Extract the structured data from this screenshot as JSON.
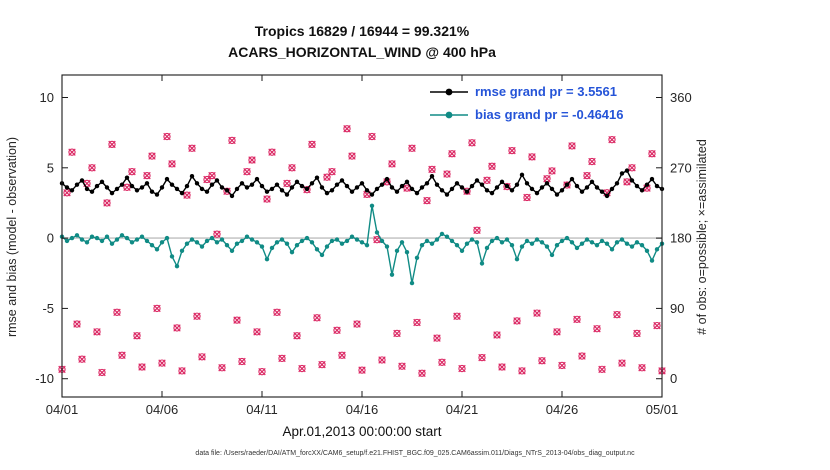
{
  "title_line1": "Tropics 16829 / 16944 = 99.321%",
  "title_line2": "ACARS_HORIZONTAL_WIND @ 400 hPa",
  "xlabel": "Apr.01,2013 00:00:00 start",
  "ylabel_left": "rmse and bias (model - observation)",
  "ylabel_right": "# of obs: o=possible; ×=assimilated",
  "footer": "data file: /Users/raeder/DAI/ATM_forcXX/CAM6_setup/f.e21.FHIST_BGC.f09_025.CAM6assim.011/Diags_NTrS_2013-04/obs_diag_output.nc",
  "legend": [
    {
      "label": "rmse grand pr = 3.5561",
      "series": "rmse"
    },
    {
      "label": "bias grand pr = -0.46416",
      "series": "bias"
    }
  ],
  "colors": {
    "rmse": "#000000",
    "bias": "#108b85",
    "obs": "#db2763",
    "legend_text": "#2554d8",
    "zero_line": "#c8c8c8",
    "axis": "#1a1a1a",
    "right_tick_text": "#db2763"
  },
  "chart_data": {
    "type": "line",
    "title": "Tropics 16829 / 16944 = 99.321% | ACARS_HORIZONTAL_WIND @ 400 hPa",
    "x_unit": "days since Apr.01,2013 00:00:00",
    "x_start": 0,
    "x_step_days": 0.25,
    "x_range_days": [
      0,
      30
    ],
    "x_tick_days": [
      0,
      5,
      10,
      15,
      20,
      25,
      30
    ],
    "x_tick_labels": [
      "04/01",
      "04/06",
      "04/11",
      "04/16",
      "04/21",
      "04/26",
      "05/01"
    ],
    "left_axis_ticks": [
      -10,
      -5,
      0,
      5,
      10
    ],
    "left_axis_range": [
      -11.3,
      11.6
    ],
    "right_axis_ticks": [
      0,
      90,
      180,
      270,
      360
    ],
    "right_axis_range": [
      0,
      360
    ],
    "grid": "zero-line-only",
    "legend_position": "upper-right-inside",
    "series": [
      {
        "name": "rmse",
        "axis": "left",
        "marker": "filled-circle",
        "grand_value": 3.5561,
        "values": [
          3.9,
          3.6,
          3.4,
          3.8,
          4.1,
          3.5,
          3.3,
          3.7,
          4.0,
          3.6,
          3.2,
          3.5,
          3.8,
          4.3,
          3.7,
          3.4,
          3.6,
          3.9,
          3.3,
          3.1,
          3.6,
          4.2,
          3.8,
          3.5,
          3.2,
          3.7,
          4.4,
          3.9,
          3.5,
          3.3,
          3.8,
          4.1,
          3.6,
          3.4,
          3.0,
          3.5,
          3.9,
          3.6,
          3.8,
          4.2,
          3.7,
          3.3,
          3.5,
          3.8,
          3.4,
          3.1,
          3.6,
          4.0,
          3.7,
          3.5,
          3.9,
          4.3,
          3.6,
          3.2,
          3.4,
          3.8,
          4.1,
          3.7,
          3.3,
          3.6,
          3.9,
          3.4,
          3.1,
          3.5,
          3.8,
          4.2,
          3.6,
          3.3,
          3.7,
          4.0,
          3.5,
          3.2,
          3.6,
          3.9,
          4.4,
          3.8,
          3.4,
          3.1,
          3.5,
          3.9,
          3.6,
          3.3,
          3.7,
          4.1,
          3.8,
          3.4,
          3.2,
          3.6,
          4.0,
          3.7,
          3.4,
          3.8,
          4.5,
          3.9,
          3.5,
          3.2,
          3.6,
          3.9,
          3.5,
          3.1,
          3.4,
          3.8,
          4.2,
          3.7,
          3.3,
          3.6,
          4.0,
          3.6,
          3.3,
          3.0,
          3.5,
          3.9,
          4.6,
          4.8,
          4.1,
          3.7,
          3.4,
          3.8,
          4.2,
          3.7,
          3.5
        ]
      },
      {
        "name": "bias",
        "axis": "left",
        "marker": "filled-circle",
        "grand_value": -0.46416,
        "values": [
          0.1,
          -0.2,
          0.0,
          0.2,
          -0.1,
          -0.3,
          0.1,
          0.0,
          -0.2,
          0.1,
          -0.4,
          -0.1,
          0.2,
          0.0,
          -0.3,
          -0.1,
          0.1,
          -0.2,
          -0.5,
          -0.8,
          -0.3,
          0.0,
          -1.3,
          -2.0,
          -0.9,
          -0.4,
          -0.1,
          -0.3,
          -0.6,
          -0.2,
          0.0,
          -0.3,
          -0.1,
          -0.5,
          -0.9,
          -0.4,
          -0.2,
          0.1,
          -0.1,
          -0.3,
          -0.6,
          -1.5,
          -0.7,
          -0.3,
          -0.1,
          -0.4,
          -1.0,
          -0.5,
          -0.2,
          0.0,
          -0.3,
          -0.8,
          -1.2,
          -0.6,
          -0.2,
          -0.1,
          -0.4,
          -0.2,
          0.1,
          -0.1,
          -0.3,
          -0.5,
          2.3,
          0.4,
          -0.2,
          -0.6,
          -2.6,
          -0.9,
          -0.3,
          -1.0,
          -3.2,
          -1.4,
          -0.5,
          -0.2,
          -0.4,
          -0.1,
          0.3,
          0.1,
          -0.2,
          -0.5,
          -0.9,
          -0.4,
          -0.1,
          -0.3,
          -1.8,
          -0.7,
          -0.2,
          0.0,
          -0.3,
          -0.1,
          -0.5,
          -1.5,
          -0.6,
          -0.2,
          -0.4,
          -0.1,
          -0.3,
          -0.6,
          -1.2,
          -0.5,
          -0.2,
          0.0,
          -0.3,
          -0.7,
          -0.4,
          -0.1,
          -0.3,
          -0.5,
          -0.2,
          -0.4,
          -0.8,
          -0.3,
          -0.1,
          -0.4,
          -0.6,
          -0.3,
          -0.5,
          -0.9,
          -1.6,
          -0.8,
          -0.4
        ]
      },
      {
        "name": "# of obs (o=possible, ×=assimilated, coincident at 99.321%)",
        "axis": "right",
        "marker": "o-and-x",
        "values": [
          12,
          238,
          290,
          70,
          25,
          250,
          270,
          60,
          8,
          225,
          300,
          85,
          30,
          245,
          265,
          55,
          15,
          260,
          285,
          90,
          20,
          310,
          275,
          65,
          10,
          235,
          295,
          80,
          28,
          255,
          260,
          185,
          14,
          240,
          305,
          75,
          22,
          265,
          280,
          60,
          9,
          230,
          290,
          85,
          26,
          250,
          270,
          55,
          13,
          242,
          300,
          78,
          18,
          258,
          265,
          62,
          30,
          320,
          285,
          70,
          11,
          236,
          310,
          178,
          24,
          252,
          275,
          58,
          16,
          244,
          295,
          72,
          7,
          228,
          268,
          52,
          21,
          262,
          288,
          80,
          13,
          240,
          302,
          190,
          27,
          254,
          272,
          56,
          15,
          246,
          292,
          74,
          10,
          232,
          284,
          84,
          23,
          256,
          266,
          60,
          17,
          248,
          298,
          76,
          29,
          260,
          278,
          64,
          12,
          238,
          306,
          82,
          20,
          252,
          270,
          58,
          14,
          244,
          288,
          68,
          10
        ]
      }
    ]
  }
}
